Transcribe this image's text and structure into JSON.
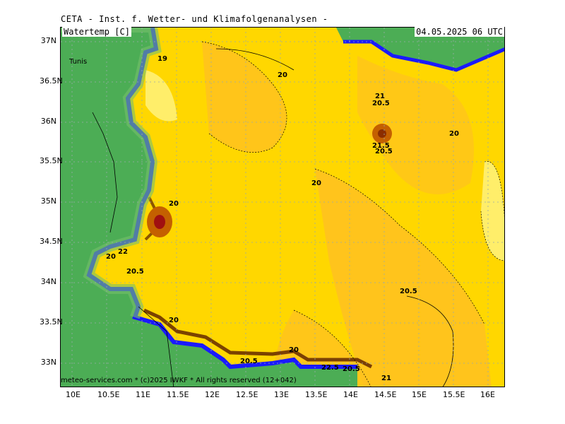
{
  "header": {
    "title": "CETA - Inst. f. Wetter- und Klimafolgenanalysen -",
    "variable": "Watertemp [C]",
    "timestamp": "04.05.2025 06 UTC"
  },
  "footer": {
    "credit": "meteo-services.com * (c)2025 IWKF * All rights reserved (12+042)"
  },
  "axes": {
    "lat_labels": [
      "37N",
      "36.5N",
      "36N",
      "35.5N",
      "35N",
      "34.5N",
      "34N",
      "33.5N",
      "33N"
    ],
    "lon_labels": [
      "10E",
      "10.5E",
      "11E",
      "11.5E",
      "12E",
      "12.5E",
      "13E",
      "13.5E",
      "14E",
      "14.5E",
      "15E",
      "15.5E",
      "16E"
    ]
  },
  "places": {
    "city": "Tunis"
  },
  "contour_labels": [
    "19",
    "20",
    "21",
    "20.5",
    "21.5",
    "20.5",
    "20",
    "20",
    "20",
    "20.5",
    "22",
    "20",
    "20.5",
    "20",
    "20",
    "20.5",
    "22.5",
    "21",
    "20.5"
  ],
  "colors": {
    "land": "#4cad55",
    "coast_green": "#76c06b",
    "coast_blue": "#1a1aff",
    "sea_yellow": "#ffd700",
    "sea_orange": "#ffc21f",
    "sea_light": "#ffee6a",
    "warm_spot": "#8b2e00"
  }
}
